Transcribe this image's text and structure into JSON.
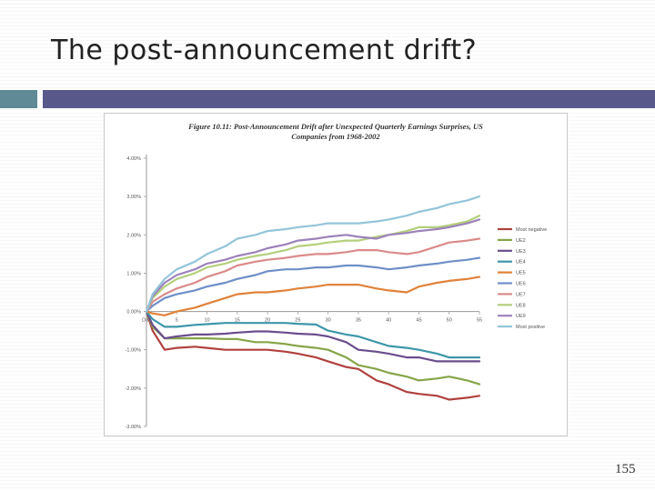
{
  "slide": {
    "title": "The post-announcement drift?",
    "page_number": "155"
  },
  "colors": {
    "accent_left": "#5f8a96",
    "accent_bar": "#58598a"
  },
  "chart_data": {
    "type": "line",
    "title": "Figure 10.11: Post-Announcement Drift after Unexpected Quarterly Earnings Surprises, US Companies from 1968-2002",
    "xlabel": "",
    "ylabel": "",
    "x": [
      0,
      1,
      3,
      5,
      8,
      10,
      13,
      15,
      18,
      20,
      23,
      25,
      28,
      30,
      33,
      35,
      38,
      40,
      43,
      45,
      48,
      50,
      53,
      55
    ],
    "x_tick_labels": [
      "Day",
      "5",
      "10",
      "15",
      "20",
      "25",
      "30",
      "35",
      "40",
      "45",
      "50",
      "55"
    ],
    "x_tick_values": [
      0,
      5,
      10,
      15,
      20,
      25,
      30,
      35,
      40,
      45,
      50,
      55
    ],
    "y_tick_labels": [
      "3.00%",
      "2.00%",
      "1.00%",
      "0.00%",
      "-1.00%",
      "-2.00%",
      "-3.00%",
      "4.00%"
    ],
    "y_tick_values": [
      3,
      2,
      1,
      0,
      -1,
      -2,
      -3,
      4
    ],
    "ylim": [
      -3,
      4
    ],
    "grid": false,
    "legend_position": "right",
    "series": [
      {
        "name": "Most negative",
        "color": "#b0413e",
        "values": [
          0,
          -0.5,
          -1.0,
          -0.95,
          -0.92,
          -0.95,
          -1.0,
          -1.0,
          -1.0,
          -1.0,
          -1.05,
          -1.1,
          -1.2,
          -1.3,
          -1.45,
          -1.5,
          -1.8,
          -1.9,
          -2.1,
          -2.15,
          -2.2,
          -2.3,
          -2.25,
          -2.2
        ]
      },
      {
        "name": "UE2",
        "color": "#86a548",
        "values": [
          0,
          -0.4,
          -0.7,
          -0.7,
          -0.7,
          -0.7,
          -0.72,
          -0.72,
          -0.8,
          -0.8,
          -0.85,
          -0.9,
          -0.95,
          -1.0,
          -1.2,
          -1.4,
          -1.5,
          -1.6,
          -1.7,
          -1.8,
          -1.75,
          -1.7,
          -1.8,
          -1.9
        ]
      },
      {
        "name": "UE3",
        "color": "#6a4e8c",
        "values": [
          0,
          -0.35,
          -0.7,
          -0.65,
          -0.6,
          -0.6,
          -0.58,
          -0.55,
          -0.52,
          -0.52,
          -0.55,
          -0.58,
          -0.6,
          -0.65,
          -0.8,
          -1.0,
          -1.05,
          -1.1,
          -1.2,
          -1.2,
          -1.3,
          -1.3,
          -1.3,
          -1.3
        ]
      },
      {
        "name": "UE4",
        "color": "#3d97a8",
        "values": [
          0,
          -0.2,
          -0.4,
          -0.4,
          -0.35,
          -0.33,
          -0.3,
          -0.3,
          -0.3,
          -0.3,
          -0.3,
          -0.32,
          -0.34,
          -0.5,
          -0.6,
          -0.65,
          -0.8,
          -0.9,
          -0.95,
          -1.0,
          -1.1,
          -1.2,
          -1.2,
          -1.2
        ]
      },
      {
        "name": "UE5",
        "color": "#e0823a",
        "values": [
          0,
          -0.05,
          -0.1,
          0.0,
          0.1,
          0.2,
          0.35,
          0.45,
          0.5,
          0.5,
          0.55,
          0.6,
          0.65,
          0.7,
          0.7,
          0.7,
          0.6,
          0.55,
          0.5,
          0.65,
          0.75,
          0.8,
          0.85,
          0.9
        ]
      },
      {
        "name": "UE6",
        "color": "#6e8fc7",
        "values": [
          0,
          0.15,
          0.35,
          0.45,
          0.55,
          0.65,
          0.75,
          0.85,
          0.95,
          1.05,
          1.1,
          1.1,
          1.15,
          1.15,
          1.2,
          1.2,
          1.15,
          1.1,
          1.15,
          1.2,
          1.25,
          1.3,
          1.35,
          1.4
        ]
      },
      {
        "name": "UE7",
        "color": "#d98b8a",
        "values": [
          0,
          0.25,
          0.45,
          0.6,
          0.75,
          0.9,
          1.05,
          1.2,
          1.3,
          1.35,
          1.4,
          1.45,
          1.5,
          1.5,
          1.55,
          1.6,
          1.6,
          1.55,
          1.5,
          1.55,
          1.7,
          1.8,
          1.85,
          1.9
        ]
      },
      {
        "name": "UE8",
        "color": "#b4cf7c",
        "values": [
          0,
          0.35,
          0.65,
          0.85,
          1.0,
          1.15,
          1.25,
          1.35,
          1.45,
          1.5,
          1.6,
          1.7,
          1.75,
          1.8,
          1.85,
          1.85,
          1.95,
          2.0,
          2.1,
          2.2,
          2.2,
          2.25,
          2.35,
          2.5
        ]
      },
      {
        "name": "UE9",
        "color": "#9c82ba",
        "values": [
          0,
          0.4,
          0.75,
          0.95,
          1.1,
          1.25,
          1.35,
          1.45,
          1.55,
          1.65,
          1.75,
          1.85,
          1.9,
          1.95,
          2.0,
          1.95,
          1.9,
          2.0,
          2.05,
          2.1,
          2.15,
          2.2,
          2.3,
          2.4
        ]
      },
      {
        "name": "Most positive",
        "color": "#93c5d9",
        "values": [
          0,
          0.45,
          0.85,
          1.1,
          1.3,
          1.5,
          1.7,
          1.9,
          2.0,
          2.1,
          2.15,
          2.2,
          2.25,
          2.3,
          2.3,
          2.3,
          2.35,
          2.4,
          2.5,
          2.6,
          2.7,
          2.8,
          2.9,
          3.0
        ]
      }
    ]
  }
}
